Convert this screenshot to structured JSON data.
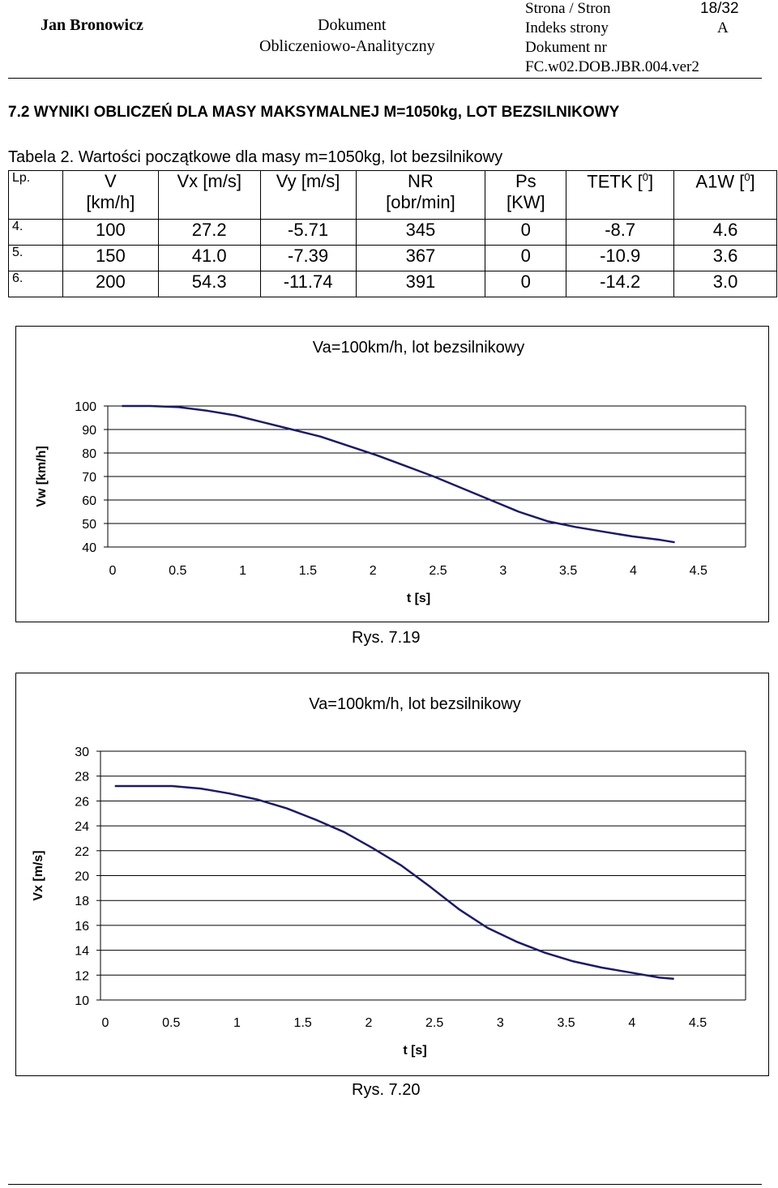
{
  "header": {
    "author": "Jan Bronowicz",
    "doc_line1": "Dokument",
    "doc_line2": "Obliczeniowo-Analityczny",
    "page_label": "Strona / Stron",
    "page_value": "18/32",
    "index_label": "Indeks strony",
    "index_value": "A",
    "docnr_label": "Dokument nr",
    "docnr_value": "FC.w02.DOB.JBR.004.ver2"
  },
  "section_title": "7.2   WYNIKI OBLICZEŃ DLA MASY MAKSYMALNEJ M=1050kg, LOT BEZSILNIKOWY",
  "table": {
    "caption": "Tabela 2. Wartości początkowe dla masy m=1050kg, lot bezsilnikowy",
    "headers": [
      [
        "Lp.",
        ""
      ],
      [
        "V",
        "[km/h]"
      ],
      [
        "Vx [m/s]",
        ""
      ],
      [
        "Vy [m/s]",
        ""
      ],
      [
        "NR",
        "[obr/min]"
      ],
      [
        "Ps",
        "[KW]"
      ],
      [
        "TETK [0]",
        ""
      ],
      [
        "A1W [0]",
        ""
      ]
    ],
    "rows": [
      [
        "4.",
        "100",
        "27.2",
        "-5.71",
        "345",
        "0",
        "-8.7",
        "4.6"
      ],
      [
        "5.",
        "150",
        "41.0",
        "-7.39",
        "367",
        "0",
        "-10.9",
        "3.6"
      ],
      [
        "6.",
        "200",
        "54.3",
        "-11.74",
        "391",
        "0",
        "-14.2",
        "3.0"
      ]
    ]
  },
  "chart_data": [
    {
      "type": "line",
      "title": "Va=100km/h, lot bezsilnikowy",
      "xlabel": "t [s]",
      "ylabel": "Vw [km/h]",
      "xlim": [
        0,
        4.5
      ],
      "ylim": [
        40,
        100
      ],
      "xticks": [
        "0",
        "0.5",
        "1",
        "1.5",
        "2",
        "2.5",
        "3",
        "3.5",
        "4",
        "4.5"
      ],
      "yticks": [
        "100",
        "90",
        "80",
        "70",
        "60",
        "50",
        "40"
      ],
      "grid": true,
      "color": "#1a1a6e",
      "x": [
        0.1,
        0.3,
        0.5,
        0.7,
        0.9,
        1.1,
        1.3,
        1.5,
        1.7,
        1.9,
        2.1,
        2.3,
        2.5,
        2.7,
        2.9,
        3.1,
        3.3,
        3.5,
        3.7,
        3.9,
        4.0
      ],
      "y": [
        100,
        100,
        99.5,
        98,
        96,
        93,
        90,
        87,
        83,
        79,
        74.5,
        70,
        65,
        60,
        55,
        51,
        48.5,
        46.5,
        44.5,
        43,
        42
      ],
      "caption": "Rys. 7.19"
    },
    {
      "type": "line",
      "title": "Va=100km/h, lot bezsilnikowy",
      "xlabel": "t [s]",
      "ylabel": "Vx [m/s]",
      "xlim": [
        0,
        4.5
      ],
      "ylim": [
        10,
        30
      ],
      "xticks": [
        "0",
        "0.5",
        "1",
        "1.5",
        "2",
        "2.5",
        "3",
        "3.5",
        "4",
        "4.5"
      ],
      "yticks": [
        "30",
        "28",
        "26",
        "24",
        "22",
        "20",
        "18",
        "16",
        "14",
        "12",
        "10"
      ],
      "grid": true,
      "color": "#1a1a6e",
      "x": [
        0.1,
        0.3,
        0.5,
        0.7,
        0.9,
        1.1,
        1.3,
        1.5,
        1.7,
        1.9,
        2.1,
        2.3,
        2.5,
        2.7,
        2.9,
        3.1,
        3.3,
        3.5,
        3.7,
        3.9,
        4.0
      ],
      "y": [
        27.2,
        27.2,
        27.2,
        27,
        26.6,
        26.1,
        25.4,
        24.5,
        23.5,
        22.2,
        20.8,
        19.1,
        17.3,
        15.8,
        14.7,
        13.8,
        13.1,
        12.6,
        12.2,
        11.8,
        11.7
      ],
      "caption": "Rys. 7.20"
    }
  ]
}
